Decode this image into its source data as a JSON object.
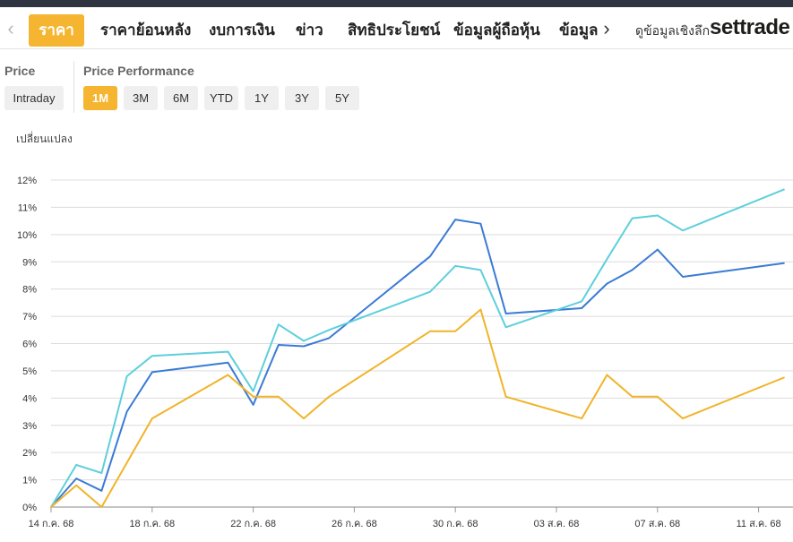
{
  "nav": {
    "prev_arrow": "‹",
    "next_arrow": "›",
    "tabs": [
      "ราคา",
      "ราคาย้อนหลัง",
      "งบการเงิน",
      "ข่าว",
      "สิทธิประโยชน์",
      "ข้อมูลผู้ถือหุ้น",
      "ข้อมูลห"
    ],
    "active_tab": "ราคา",
    "brand_text": "ดูข้อมูลเชิงลึก",
    "brand_logo": "settrade"
  },
  "price": {
    "label": "Price",
    "intraday": "Intraday"
  },
  "performance": {
    "label": "Price Performance",
    "periods": [
      "1M",
      "3M",
      "6M",
      "YTD",
      "1Y",
      "3Y",
      "5Y"
    ],
    "active": "1M"
  },
  "colors": {
    "accent": "#f5b530",
    "series_blue": "#3a7bd5",
    "series_cyan": "#5ecfdc",
    "series_yellow": "#f0b429"
  },
  "chart_data": {
    "type": "line",
    "ylabel": "เปลี่ยนแปลง",
    "ylim": [
      0,
      12
    ],
    "yticks": [
      "0%",
      "1%",
      "2%",
      "3%",
      "4%",
      "5%",
      "6%",
      "7%",
      "8%",
      "9%",
      "10%",
      "11%",
      "12%"
    ],
    "xlim": [
      "2025-07-14",
      "2025-08-12"
    ],
    "xticks": [
      {
        "date": "2025-07-14",
        "label": "14 ก.ค. 68"
      },
      {
        "date": "2025-07-18",
        "label": "18 ก.ค. 68"
      },
      {
        "date": "2025-07-22",
        "label": "22 ก.ค. 68"
      },
      {
        "date": "2025-07-26",
        "label": "26 ก.ค. 68"
      },
      {
        "date": "2025-07-30",
        "label": "30 ก.ค. 68"
      },
      {
        "date": "2025-08-03",
        "label": "03 ส.ค. 68"
      },
      {
        "date": "2025-08-07",
        "label": "07 ส.ค. 68"
      },
      {
        "date": "2025-08-11",
        "label": "11 ส.ค. 68"
      }
    ],
    "grid": true,
    "series": [
      {
        "color": "#3a7bd5",
        "points": [
          [
            "2025-07-14",
            0.0
          ],
          [
            "2025-07-15",
            1.05
          ],
          [
            "2025-07-16",
            0.6
          ],
          [
            "2025-07-17",
            3.5
          ],
          [
            "2025-07-18",
            4.95
          ],
          [
            "2025-07-21",
            5.3
          ],
          [
            "2025-07-22",
            3.75
          ],
          [
            "2025-07-23",
            5.95
          ],
          [
            "2025-07-24",
            5.9
          ],
          [
            "2025-07-25",
            6.2
          ],
          [
            "2025-07-29",
            9.2
          ],
          [
            "2025-07-30",
            10.55
          ],
          [
            "2025-07-31",
            10.4
          ],
          [
            "2025-08-01",
            7.1
          ],
          [
            "2025-08-04",
            7.3
          ],
          [
            "2025-08-05",
            8.2
          ],
          [
            "2025-08-06",
            8.7
          ],
          [
            "2025-08-07",
            9.45
          ],
          [
            "2025-08-08",
            8.45
          ],
          [
            "2025-08-12",
            8.95
          ]
        ]
      },
      {
        "color": "#5ecfdc",
        "points": [
          [
            "2025-07-14",
            0.0
          ],
          [
            "2025-07-15",
            1.55
          ],
          [
            "2025-07-16",
            1.25
          ],
          [
            "2025-07-17",
            4.8
          ],
          [
            "2025-07-18",
            5.55
          ],
          [
            "2025-07-21",
            5.7
          ],
          [
            "2025-07-22",
            4.25
          ],
          [
            "2025-07-23",
            6.7
          ],
          [
            "2025-07-24",
            6.1
          ],
          [
            "2025-07-25",
            6.5
          ],
          [
            "2025-07-29",
            7.9
          ],
          [
            "2025-07-30",
            8.85
          ],
          [
            "2025-07-31",
            8.7
          ],
          [
            "2025-08-01",
            6.6
          ],
          [
            "2025-08-04",
            7.55
          ],
          [
            "2025-08-05",
            9.1
          ],
          [
            "2025-08-06",
            10.6
          ],
          [
            "2025-08-07",
            10.7
          ],
          [
            "2025-08-08",
            10.15
          ],
          [
            "2025-08-12",
            11.65
          ]
        ]
      },
      {
        "color": "#f0b429",
        "points": [
          [
            "2025-07-14",
            0.0
          ],
          [
            "2025-07-15",
            0.8
          ],
          [
            "2025-07-16",
            0.0
          ],
          [
            "2025-07-18",
            3.25
          ],
          [
            "2025-07-21",
            4.85
          ],
          [
            "2025-07-22",
            4.05
          ],
          [
            "2025-07-23",
            4.05
          ],
          [
            "2025-07-24",
            3.25
          ],
          [
            "2025-07-25",
            4.05
          ],
          [
            "2025-07-29",
            6.45
          ],
          [
            "2025-07-30",
            6.45
          ],
          [
            "2025-07-31",
            7.25
          ],
          [
            "2025-08-01",
            4.05
          ],
          [
            "2025-08-04",
            3.25
          ],
          [
            "2025-08-05",
            4.85
          ],
          [
            "2025-08-06",
            4.05
          ],
          [
            "2025-08-07",
            4.05
          ],
          [
            "2025-08-08",
            3.25
          ],
          [
            "2025-08-12",
            4.75
          ]
        ]
      }
    ]
  }
}
